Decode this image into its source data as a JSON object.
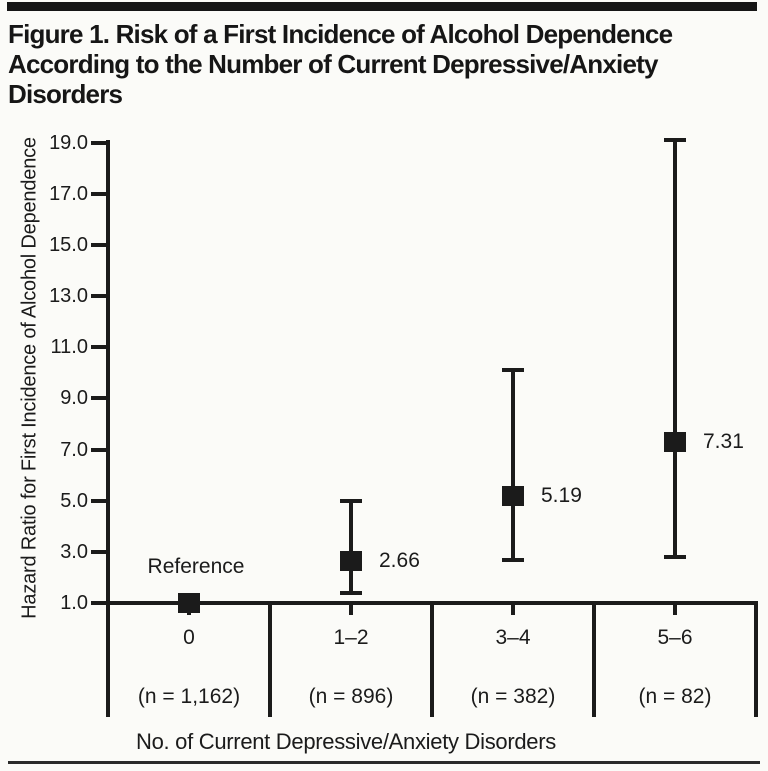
{
  "figure": {
    "background": "#fbfbf8",
    "ink": "#1b1b1b",
    "title_lines": [
      "Figure 1. Risk of a First Incidence of Alcohol Dependence",
      "According to the Number of Current Depressive/Anxiety",
      "Disorders"
    ]
  },
  "chart_data": {
    "type": "scatter",
    "title": "Figure 1. Risk of a First Incidence of Alcohol Dependence According to the Number of Current Depressive/Anxiety Disorders",
    "xlabel": "No. of Current Depressive/Anxiety Disorders",
    "ylabel": "Hazard Ratio for First Incidence of Alcohol Dependence",
    "ylim": [
      1.0,
      19.0
    ],
    "yticks": [
      19.0,
      17.0,
      15.0,
      13.0,
      11.0,
      9.0,
      7.0,
      5.0,
      3.0,
      1.0
    ],
    "ytick_labels": [
      "19.0",
      "17.0",
      "15.0",
      "13.0",
      "11.0",
      "9.0",
      "7.0",
      "5.0",
      "3.0",
      "1.0"
    ],
    "grid": false,
    "legend_position": "none",
    "marker": "filled-square",
    "categories": [
      "0",
      "1–2",
      "3–4",
      "5–6"
    ],
    "sample_sizes": [
      "(n = 1,162)",
      "(n = 896)",
      "(n = 382)",
      "(n = 82)"
    ],
    "points": [
      {
        "category": "0",
        "hazard_ratio": 1.0,
        "label": "Reference",
        "label_placement": "above",
        "ci_low": null,
        "ci_high": null
      },
      {
        "category": "1–2",
        "hazard_ratio": 2.66,
        "label": "2.66",
        "label_placement": "right",
        "ci_low": 1.4,
        "ci_high": 5.0
      },
      {
        "category": "3–4",
        "hazard_ratio": 5.19,
        "label": "5.19",
        "label_placement": "right",
        "ci_low": 2.7,
        "ci_high": 10.1
      },
      {
        "category": "5–6",
        "hazard_ratio": 7.31,
        "label": "7.31",
        "label_placement": "right",
        "ci_low": 2.8,
        "ci_high": 19.1
      }
    ]
  }
}
